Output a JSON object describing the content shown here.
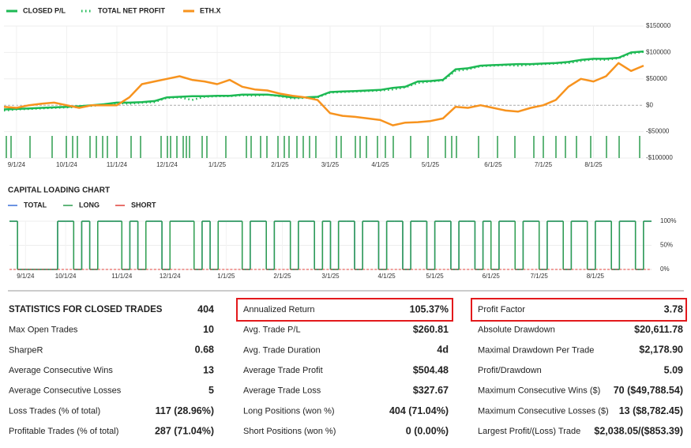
{
  "chart_data": [
    {
      "type": "line",
      "categories": [
        null,
        "9/1/24",
        null,
        null,
        null,
        "10/1/24",
        null,
        null,
        null,
        "11/1/24",
        null,
        null,
        null,
        "12/1/24",
        null,
        null,
        null,
        "1/1/25",
        null,
        null,
        null,
        null,
        "2/1/25",
        null,
        null,
        null,
        "3/1/25",
        null,
        null,
        null,
        "4/1/25",
        null,
        null,
        null,
        "5/1/25",
        null,
        null,
        null,
        null,
        "6/1/25",
        null,
        null,
        null,
        "7/1/25",
        null,
        null,
        null,
        "8/1/25",
        null,
        null,
        null,
        null
      ],
      "series": [
        {
          "name": "CLOSED P/L",
          "color": "#1db954",
          "values": [
            -8000,
            -7000,
            -6000,
            -5000,
            -4000,
            -3000,
            -2000,
            0,
            2000,
            5000,
            5000,
            6000,
            8000,
            15000,
            16000,
            17000,
            17000,
            18000,
            18000,
            20000,
            20000,
            20000,
            18000,
            15000,
            15000,
            16000,
            25000,
            26000,
            27000,
            28000,
            29000,
            33000,
            35000,
            45000,
            46000,
            48000,
            68000,
            70000,
            75000,
            76000,
            77000,
            78000,
            78000,
            79000,
            80000,
            82000,
            86000,
            88000,
            88000,
            90000,
            100000,
            102000
          ]
        },
        {
          "name": "TOTAL NET PROFIT",
          "color": "#1db954",
          "values": [
            -10000,
            -8000,
            -7000,
            -6000,
            -5000,
            -4000,
            -3000,
            -1000,
            1000,
            4000,
            3000,
            5000,
            6000,
            14000,
            15000,
            10000,
            16000,
            17000,
            17000,
            19000,
            18000,
            20000,
            17000,
            13000,
            14000,
            15000,
            24000,
            25000,
            26000,
            27000,
            28000,
            30000,
            34000,
            42000,
            45000,
            47000,
            65000,
            68000,
            74000,
            75000,
            76000,
            75000,
            77000,
            78000,
            79000,
            80000,
            84000,
            87000,
            86000,
            89000,
            98000,
            101000
          ]
        },
        {
          "name": "ETH.X",
          "color": "#f7931e",
          "values": [
            -3000,
            -5000,
            0,
            3000,
            5000,
            0,
            -5000,
            0,
            0,
            0,
            15000,
            40000,
            45000,
            50000,
            55000,
            48000,
            45000,
            40000,
            48000,
            35000,
            30000,
            28000,
            22000,
            18000,
            15000,
            10000,
            -15000,
            -20000,
            -22000,
            -25000,
            -28000,
            -38000,
            -33000,
            -32000,
            -30000,
            -25000,
            -3000,
            -5000,
            0,
            -5000,
            -10000,
            -12000,
            -5000,
            0,
            10000,
            35000,
            50000,
            45000,
            55000,
            80000,
            65000,
            75000
          ]
        }
      ],
      "ylim": [
        -100000,
        150000
      ],
      "yticks": [
        {
          "value": 150000,
          "label": "$150000"
        },
        {
          "value": 100000,
          "label": "$100000"
        },
        {
          "value": 50000,
          "label": "$50000"
        },
        {
          "value": 0,
          "label": "$0"
        },
        {
          "value": -50000,
          "label": "-$50000"
        },
        {
          "value": -100000,
          "label": "-$100000"
        }
      ],
      "grid": true
    },
    {
      "type": "step",
      "title": "CAPITAL LOADING CHART",
      "categories": [
        null,
        null,
        "9/1/24",
        null,
        null,
        null,
        null,
        "10/1/24",
        null,
        null,
        null,
        null,
        null,
        null,
        "11/1/24",
        null,
        null,
        null,
        null,
        null,
        "12/1/24",
        null,
        null,
        null,
        null,
        null,
        null,
        "1/1/25",
        null,
        null,
        null,
        null,
        null,
        null,
        "2/1/25",
        null,
        null,
        null,
        null,
        null,
        "3/1/25",
        null,
        null,
        null,
        null,
        null,
        null,
        "4/1/25",
        null,
        null,
        null,
        null,
        null,
        "5/1/25",
        null,
        null,
        null,
        null,
        null,
        null,
        "6/1/25",
        null,
        null,
        null,
        null,
        null,
        "7/1/25",
        null,
        null,
        null,
        null,
        null,
        null,
        "8/1/25",
        null,
        null,
        null,
        null,
        null,
        null
      ],
      "series": [
        {
          "name": "TOTAL",
          "color": "#3b6fd8",
          "values": [
            100,
            0,
            0,
            0,
            0,
            0,
            100,
            100,
            0,
            100,
            0,
            100,
            100,
            100,
            0,
            100,
            0,
            100,
            100,
            0,
            100,
            100,
            100,
            0,
            100,
            0,
            100,
            100,
            100,
            0,
            100,
            100,
            0,
            100,
            100,
            0,
            100,
            100,
            0,
            100,
            0,
            100,
            100,
            0,
            100,
            100,
            0,
            100,
            100,
            0,
            100,
            100,
            0,
            100,
            100,
            0,
            100,
            100,
            0,
            100,
            0,
            100,
            100,
            0,
            100,
            100,
            0,
            100,
            100,
            0,
            100,
            100,
            0,
            100,
            100,
            0,
            100,
            100,
            0,
            100
          ]
        },
        {
          "name": "LONG",
          "color": "#2e9e4f",
          "values": [
            100,
            0,
            0,
            0,
            0,
            0,
            100,
            100,
            0,
            100,
            0,
            100,
            100,
            100,
            0,
            100,
            0,
            100,
            100,
            0,
            100,
            100,
            100,
            0,
            100,
            0,
            100,
            100,
            100,
            0,
            100,
            100,
            0,
            100,
            100,
            0,
            100,
            100,
            0,
            100,
            0,
            100,
            100,
            0,
            100,
            100,
            0,
            100,
            100,
            0,
            100,
            100,
            0,
            100,
            100,
            0,
            100,
            100,
            0,
            100,
            0,
            100,
            100,
            0,
            100,
            100,
            0,
            100,
            100,
            0,
            100,
            100,
            0,
            100,
            100,
            0,
            100,
            100,
            0,
            100
          ]
        },
        {
          "name": "SHORT",
          "color": "#e0403a",
          "values": [
            0,
            0,
            0,
            0,
            0,
            0,
            0,
            0,
            0,
            0,
            0,
            0,
            0,
            0,
            0,
            0,
            0,
            0,
            0,
            0,
            0,
            0,
            0,
            0,
            0,
            0,
            0,
            0,
            0,
            0,
            0,
            0,
            0,
            0,
            0,
            0,
            0,
            0,
            0,
            0,
            0,
            0,
            0,
            0,
            0,
            0,
            0,
            0,
            0,
            0,
            0,
            0,
            0,
            0,
            0,
            0,
            0,
            0,
            0,
            0,
            0,
            0,
            0,
            0,
            0,
            0,
            0,
            0,
            0,
            0,
            0,
            0,
            0,
            0,
            0,
            0,
            0,
            0,
            0,
            0
          ]
        }
      ],
      "ylim": [
        0,
        100
      ],
      "yticks": [
        {
          "value": 100,
          "label": "100%"
        },
        {
          "value": 50,
          "label": "50%"
        },
        {
          "value": 0,
          "label": "0%"
        }
      ],
      "grid": true
    }
  ],
  "stats": {
    "columns": [
      {
        "rows": [
          [
            "STATISTICS FOR CLOSED TRADES",
            "404"
          ],
          [
            "Max Open Trades",
            "10"
          ],
          [
            "SharpeR",
            "0.68"
          ],
          [
            "Average Consecutive Wins",
            "13"
          ],
          [
            "Average Consecutive Losses",
            "5"
          ],
          [
            "Loss Trades (% of total)",
            "117 (28.96%)"
          ],
          [
            "Profitable Trades (% of total)",
            "287 (71.04%)"
          ]
        ]
      },
      {
        "rows": [
          [
            "Annualized Return",
            "105.37%"
          ],
          [
            "Avg. Trade P/L",
            "$260.81"
          ],
          [
            "Avg. Trade Duration",
            "4d"
          ],
          [
            "Average Trade Profit",
            "$504.48"
          ],
          [
            "Average Trade Loss",
            "$327.67"
          ],
          [
            "Long Positions (won %)",
            "404 (71.04%)"
          ],
          [
            "Short Positions (won %)",
            "0 (0.00%)"
          ]
        ]
      },
      {
        "rows": [
          [
            "Profit Factor",
            "3.78"
          ],
          [
            "Absolute Drawdown",
            "$20,611.78"
          ],
          [
            "Maximal Drawdown Per Trade",
            "$2,178.90"
          ],
          [
            "Profit/Drawdown",
            "5.09"
          ],
          [
            "Maximum Consecutive Wins ($)",
            "70 ($49,788.54)"
          ],
          [
            "Maximum Consecutive Losses ($)",
            "13 ($8,782.45)"
          ],
          [
            "Largest Profit/(Loss) Trade",
            "$2,038.05/($853.39)"
          ]
        ]
      }
    ]
  }
}
